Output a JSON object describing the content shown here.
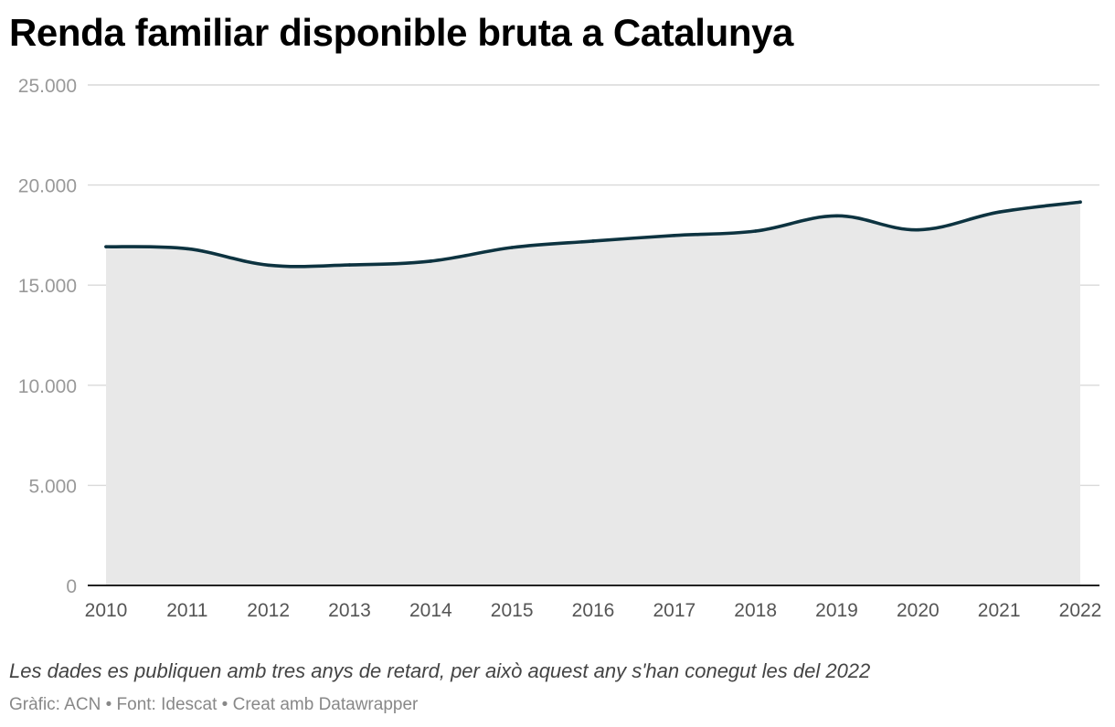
{
  "chart_data": {
    "type": "area",
    "title": "Renda familiar disponible bruta a Catalunya",
    "x": [
      "2010",
      "2011",
      "2012",
      "2013",
      "2014",
      "2015",
      "2016",
      "2017",
      "2018",
      "2019",
      "2020",
      "2021",
      "2022"
    ],
    "values": [
      16920,
      16820,
      16000,
      16010,
      16200,
      16880,
      17200,
      17480,
      17700,
      18460,
      17760,
      18650,
      19150
    ],
    "ylim": [
      0,
      25000
    ],
    "y_ticks": [
      {
        "value": 0,
        "label": "0"
      },
      {
        "value": 5000,
        "label": "5.000"
      },
      {
        "value": 10000,
        "label": "10.000"
      },
      {
        "value": 15000,
        "label": "15.000"
      },
      {
        "value": 20000,
        "label": "20.000"
      },
      {
        "value": 25000,
        "label": "25.000"
      }
    ],
    "xlabel": "",
    "ylabel": "",
    "grid": true,
    "colors": {
      "line": "#0d3340",
      "area": "#e8e8e8",
      "grid": "#d9d9d9",
      "axis": "#222222",
      "tick_text": "#999999",
      "x_tick_text": "#555555"
    }
  },
  "footer": {
    "note": "Les dades es publiquen amb tres anys de retard, per això aquest any s'han conegut les del 2022",
    "credit_chart": "Gràfic: ACN",
    "credit_source": "Font: Idescat",
    "credit_tool": "Creat amb Datawrapper",
    "separator": "•"
  }
}
